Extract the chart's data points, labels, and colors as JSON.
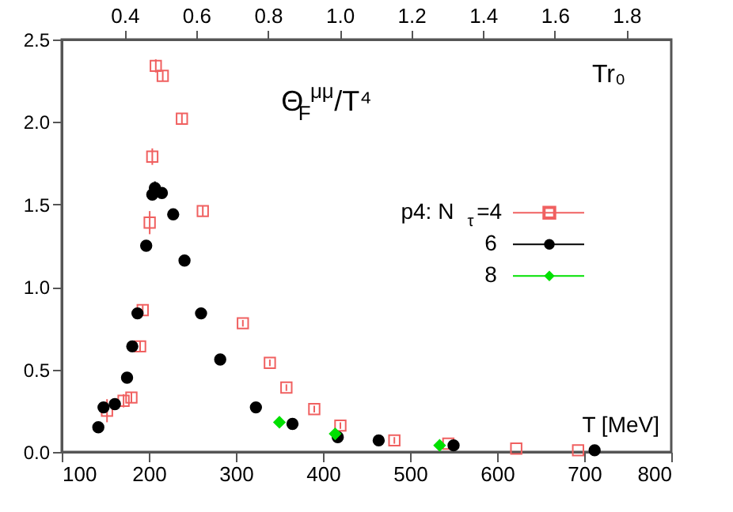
{
  "chart_data": {
    "type": "scatter",
    "xlabel": "T [MeV]",
    "annotations": [
      "Θ$_{F}$$^{μμ}$/T⁴",
      "Tr₀"
    ],
    "xlim": [
      100,
      800
    ],
    "xticks": [
      100,
      200,
      300,
      400,
      500,
      600,
      700,
      800
    ],
    "ylim": [
      0,
      2.5
    ],
    "yticks": [
      {
        "value": 0,
        "label": "0.0"
      },
      0.5,
      {
        "value": 1,
        "label": "1.0"
      },
      1.5,
      {
        "value": 2,
        "label": "2.0"
      },
      2.5
    ],
    "x2lim": [
      0.225,
      1.925
    ],
    "x2ticks": [
      0.4,
      0.6,
      0.8,
      {
        "value": 1,
        "label": "1.0"
      },
      1.2,
      1.4,
      1.6,
      1.8
    ],
    "legend": "right",
    "grid": false,
    "series": [
      {
        "name": "p4: N$_{τ}$=4",
        "color": "#f06060",
        "marker": "square",
        "x": [
          208,
          216,
          238,
          204,
          262,
          201,
          193,
          190,
          180,
          171,
          152,
          308,
          339,
          358,
          390,
          420,
          482,
          544,
          622,
          693
        ],
        "values": [
          2.34,
          2.28,
          2.02,
          1.79,
          1.46,
          1.39,
          0.86,
          0.64,
          0.33,
          0.31,
          0.25,
          0.78,
          0.54,
          0.39,
          0.26,
          0.16,
          0.07,
          0.05,
          0.02,
          0.01
        ],
        "errors": [
          0.04,
          0.03,
          0.03,
          0.05,
          0.03,
          0.07,
          0.03,
          0.03,
          0.03,
          0.04,
          0.07,
          0.02,
          0.02,
          0.02,
          0.02,
          0.02,
          0.02,
          null,
          null,
          null
        ]
      },
      {
        "name": "6",
        "color": "#000000",
        "marker": "circle",
        "x": [
          207,
          204,
          215,
          228,
          197,
          241,
          187,
          181,
          175,
          161,
          148,
          142,
          260,
          282,
          323,
          365,
          417,
          464,
          550,
          712
        ],
        "values": [
          1.6,
          1.56,
          1.57,
          1.44,
          1.25,
          1.16,
          0.84,
          0.64,
          0.45,
          0.29,
          0.27,
          0.15,
          0.84,
          0.56,
          0.27,
          0.17,
          0.09,
          0.07,
          0.04,
          0.01
        ],
        "errors": [
          0.04,
          0.03,
          null,
          null,
          0.03,
          null,
          null,
          null,
          null,
          null,
          null,
          null,
          null,
          null,
          null,
          null,
          null,
          null,
          null,
          null
        ]
      },
      {
        "name": "8",
        "color": "#00e000",
        "marker": "diamond",
        "x": [
          350,
          414,
          534
        ],
        "values": [
          0.18,
          0.11,
          0.04
        ]
      }
    ]
  }
}
